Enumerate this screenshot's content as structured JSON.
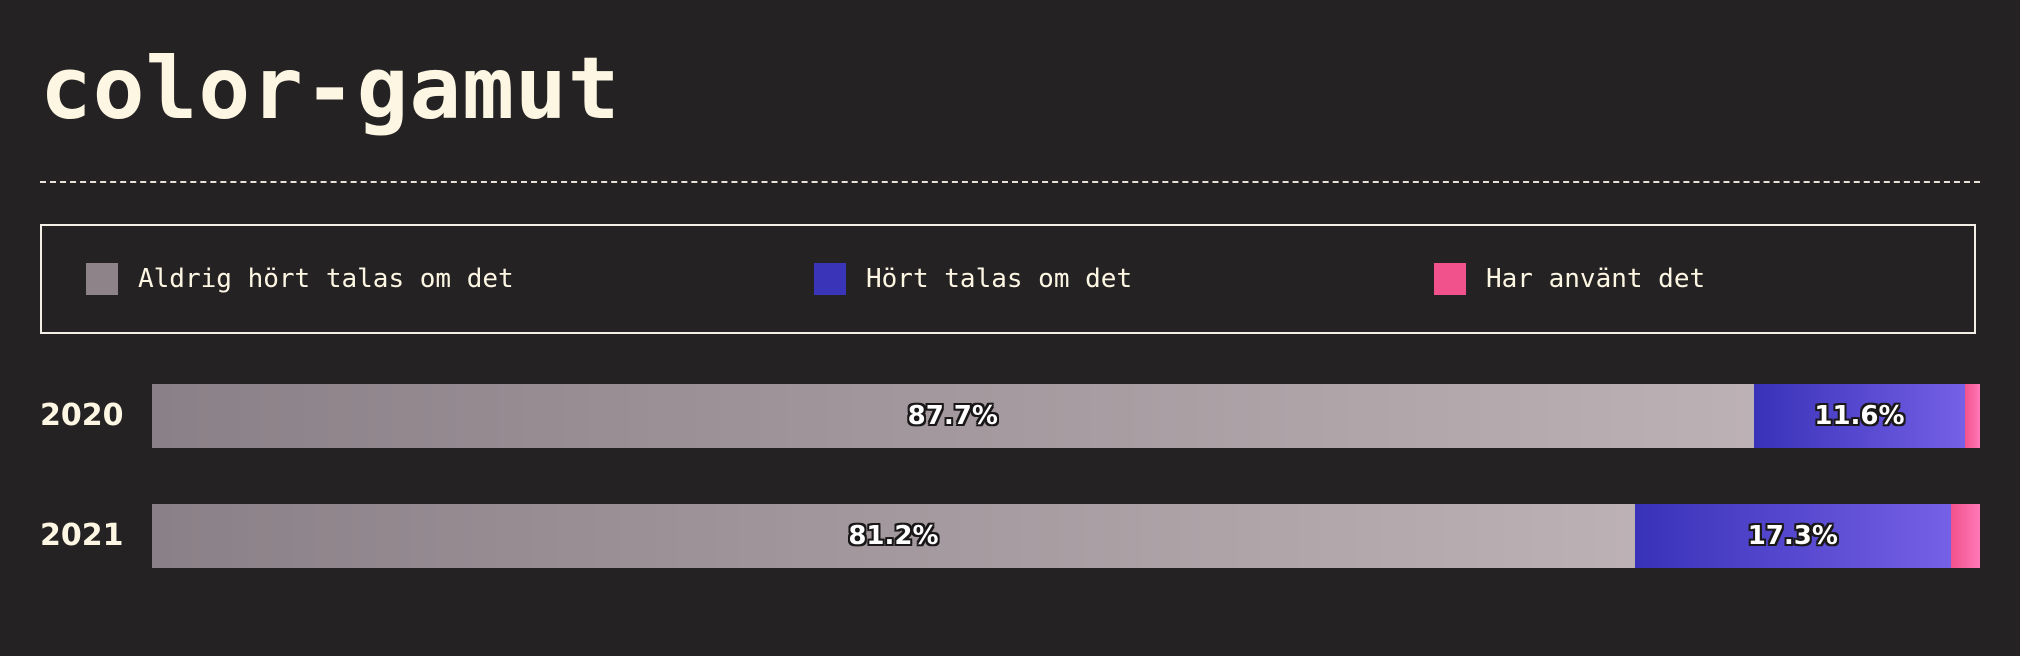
{
  "title": "color-gamut",
  "colors": {
    "background": "#252224",
    "never_heard": [
      "#8a8087",
      "#bcb1b4"
    ],
    "heard": [
      "#3832b8",
      "#7560e6"
    ],
    "used": [
      "#f2528c",
      "#ff78b8"
    ]
  },
  "legend": [
    {
      "label": "Aldrig hört talas om det",
      "color": "#8d8389"
    },
    {
      "label": "Hört talas om det",
      "color": "#3a34b8"
    },
    {
      "label": "Har använt det",
      "color": "#f2528c"
    }
  ],
  "chart_data": {
    "type": "bar",
    "orientation": "horizontal",
    "stacked": true,
    "title": "color-gamut",
    "categories": [
      "2020",
      "2021"
    ],
    "series": [
      {
        "name": "Aldrig hört talas om det",
        "values": [
          87.7,
          81.2
        ],
        "labels": [
          "87.7%",
          "81.2%"
        ]
      },
      {
        "name": "Hört talas om det",
        "values": [
          11.6,
          17.3
        ],
        "labels": [
          "11.6%",
          "17.3%"
        ]
      },
      {
        "name": "Har använt det",
        "values": [
          0.8,
          1.6
        ],
        "labels": [
          "",
          ""
        ]
      }
    ],
    "xlim": [
      0,
      100
    ],
    "legend_position": "top",
    "grid": false
  }
}
